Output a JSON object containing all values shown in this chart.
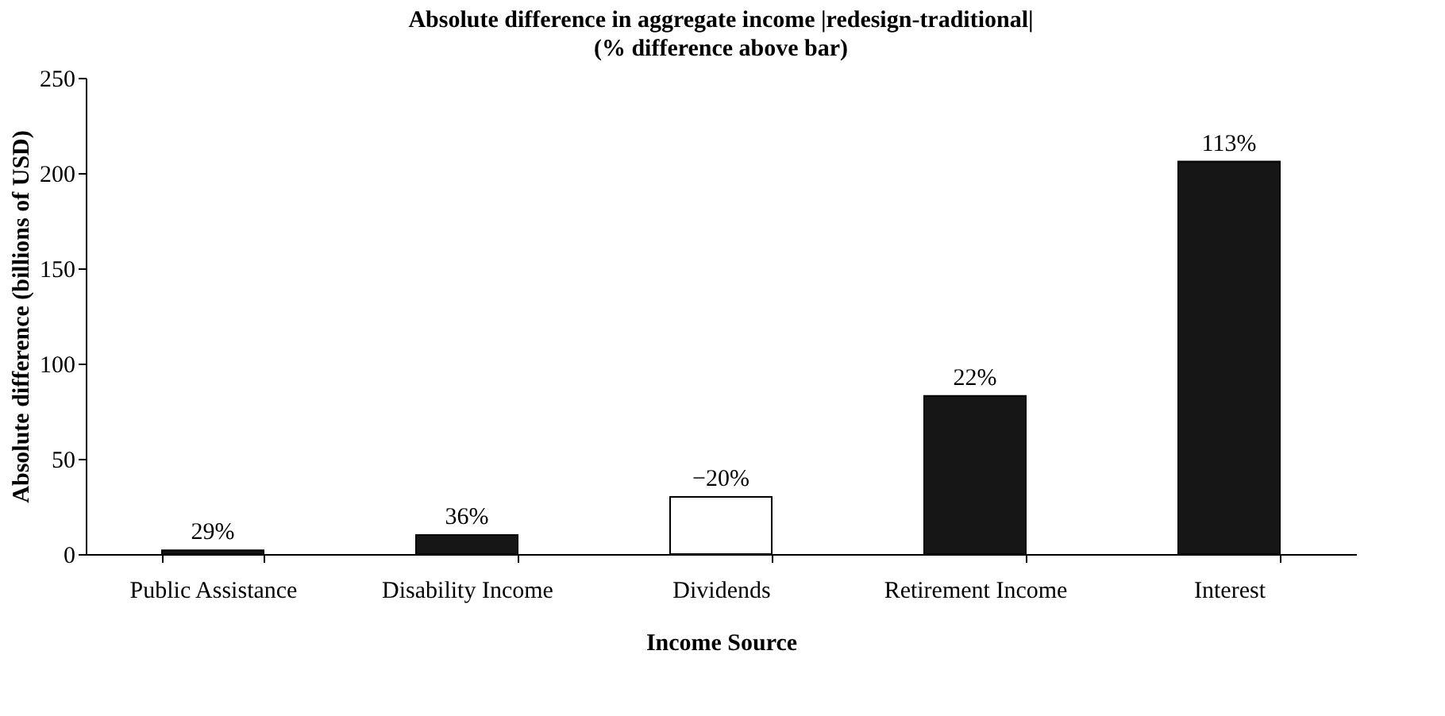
{
  "chart_data": {
    "type": "bar",
    "title": "Absolute difference in aggregate income |redesign-traditional|",
    "subtitle": "(% difference above bar)",
    "xlabel": "Income Source",
    "ylabel": "Absolute difference (billions of USD)",
    "categories": [
      "Public Assistance",
      "Disability Income",
      "Dividends",
      "Retirement Income",
      "Interest"
    ],
    "values": [
      2,
      10,
      30,
      83,
      206
    ],
    "colors": [
      "#161616",
      "#161616",
      "#ffffff",
      "#161616",
      "#161616"
    ],
    "annotations": [
      {
        "text": "29%",
        "x": "Public Assistance",
        "y": 2
      },
      {
        "text": "36%",
        "x": "Disability Income",
        "y": 10
      },
      {
        "text": "−20%",
        "x": "Dividends",
        "y": 30
      },
      {
        "text": "22%",
        "x": "Retirement Income",
        "y": 83
      },
      {
        "text": "113%",
        "x": "Interest",
        "y": 206
      }
    ],
    "ylim": [
      0,
      250
    ],
    "yticks": [
      0,
      50,
      100,
      150,
      200,
      250
    ],
    "grid": false
  }
}
